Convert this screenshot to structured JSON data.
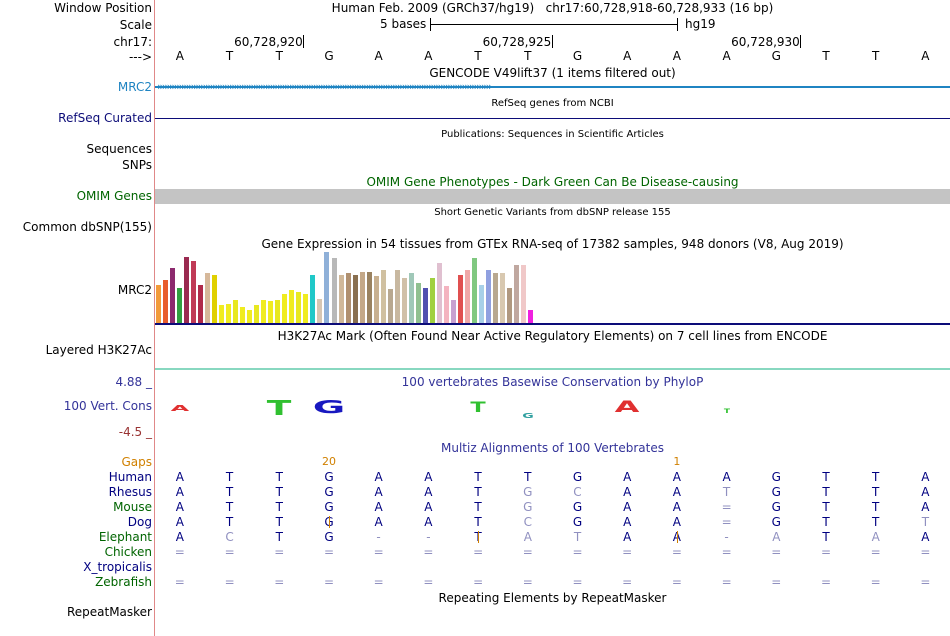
{
  "header": {
    "window_position_label": "Window Position",
    "window_position_text": "Human Feb. 2009 (GRCh37/hg19)   chr17:60,728,918-60,728,933 (16 bp)",
    "scale_label": "Scale",
    "scale_text": "5 bases",
    "scale_assembly": "hg19",
    "chrom_label": "chr17:",
    "coords": [
      "60,728,920",
      "60,728,925",
      "60,728,930"
    ],
    "arrow_label": "--->",
    "bases": [
      "A",
      "T",
      "T",
      "G",
      "A",
      "A",
      "T",
      "T",
      "G",
      "A",
      "A",
      "A",
      "G",
      "T",
      "T",
      "A"
    ]
  },
  "tracks": {
    "gencode": {
      "title": "GENCODE V49lift37 (1 items filtered out)",
      "label": "MRC2",
      "color": "#1f84c2"
    },
    "refseq": {
      "title": "RefSeq genes from NCBI",
      "label": "RefSeq Curated",
      "color": "#0c0c78"
    },
    "publications": {
      "title": "Publications: Sequences in Scientific Articles",
      "label1": "Sequences",
      "label2": "SNPs"
    },
    "omim": {
      "title": "OMIM Gene Phenotypes - Dark Green Can Be Disease-causing",
      "label": "OMIM Genes",
      "color": "#006400",
      "bar_color": "#c4c4c4"
    },
    "snp": {
      "title": "Short Genetic Variants from dbSNP release 155",
      "label": "Common dbSNP(155)"
    },
    "gtex": {
      "title": "Gene Expression in 54 tissues from GTEx RNA-seq of 17382 samples, 948 donors (V8, Aug 2019)",
      "label": "MRC2",
      "values": [
        0.54,
        0.6,
        0.78,
        0.49,
        0.93,
        0.88,
        0.54,
        0.71,
        0.68,
        0.26,
        0.27,
        0.32,
        0.22,
        0.18,
        0.26,
        0.33,
        0.31,
        0.32,
        0.41,
        0.46,
        0.44,
        0.41,
        0.68,
        0.34,
        1.0,
        0.92,
        0.67,
        0.71,
        0.67,
        0.72,
        0.72,
        0.66,
        0.75,
        0.48,
        0.74,
        0.63,
        0.71,
        0.57,
        0.49,
        0.63,
        0.85,
        0.52,
        0.32,
        0.67,
        0.74,
        0.91,
        0.53,
        0.75,
        0.7,
        0.7,
        0.49,
        0.81,
        0.81,
        0.19
      ],
      "colors": [
        "#f29a3a",
        "#e85d2c",
        "#8c2a6e",
        "#30a040",
        "#9a2a50",
        "#c03a56",
        "#b02a4a",
        "#d6b89a",
        "#e0d000",
        "#f0ec20",
        "#f0ec20",
        "#e8e820",
        "#f0ec20",
        "#f0ec20",
        "#e8e820",
        "#f0ec20",
        "#f0ec20",
        "#e8e820",
        "#f0ec20",
        "#f0ec20",
        "#e8e820",
        "#f0ec20",
        "#20c8c8",
        "#d7c6b2",
        "#8fb0d8",
        "#b8b8b8",
        "#d0b89a",
        "#b09070",
        "#8a7050",
        "#c4a888",
        "#9a8260",
        "#c8b090",
        "#d0c0a0",
        "#b8a890",
        "#c8b8a0",
        "#d0c0a8",
        "#a0c8b8",
        "#90c090",
        "#5050b0",
        "#a0d040",
        "#e0c0d0",
        "#f4b4c0",
        "#c8a0d0",
        "#e05050",
        "#f0a8a8",
        "#80c880",
        "#a8d0e8",
        "#90a0e0",
        "#b8a890",
        "#d8c8b0",
        "#b09880",
        "#c0a8a0",
        "#f0c8c8",
        "#f020e0"
      ]
    },
    "h3k27ac": {
      "title": "H3K27Ac Mark (Often Found Near Active Regulatory Elements) on 7 cell lines from ENCODE",
      "label": "Layered H3K27Ac"
    },
    "phylop": {
      "title": "100 vertebrates Basewise Conservation by PhyloP",
      "label": "100 Vert. Cons",
      "max": "4.88 _",
      "min": "-4.5 _",
      "color": "#333399"
    },
    "multiz": {
      "title": "Multiz Alignments of 100 Vertebrates",
      "gaps_label": "Gaps",
      "gap_marks": [
        {
          "col": 3.5,
          "text": "20"
        },
        {
          "col": 10.5,
          "text": "1"
        }
      ],
      "species": [
        {
          "name": "Human",
          "color": "#000080",
          "seq": [
            "A",
            "T",
            "T",
            "G",
            "A",
            "A",
            "T",
            "T",
            "G",
            "A",
            "A",
            "A",
            "G",
            "T",
            "T",
            "A"
          ],
          "pale": []
        },
        {
          "name": "Rhesus",
          "color": "#000080",
          "seq": [
            "A",
            "T",
            "T",
            "G",
            "A",
            "A",
            "T",
            "G",
            "C",
            "A",
            "A",
            "T",
            "G",
            "T",
            "T",
            "A"
          ],
          "pale": [
            7,
            8,
            11
          ]
        },
        {
          "name": "Mouse",
          "color": "#006400",
          "seq": [
            "A",
            "T",
            "T",
            "G",
            "A",
            "A",
            "T",
            "G",
            "G",
            "A",
            "A",
            "=",
            "G",
            "T",
            "T",
            "A"
          ],
          "pale": [
            7,
            11
          ]
        },
        {
          "name": "Dog",
          "color": "#000080",
          "seq": [
            "A",
            "T",
            "T",
            "G",
            "A",
            "A",
            "T",
            "C",
            "G",
            "A",
            "A",
            "=",
            "G",
            "T",
            "T",
            "T"
          ],
          "pale": [
            7,
            11,
            15
          ]
        },
        {
          "name": "Elephant",
          "color": "#006400",
          "seq": [
            "A",
            "C",
            "T",
            "G",
            "-",
            "-",
            "T",
            "A",
            "T",
            "A",
            "A",
            "-",
            "A",
            "T",
            "A",
            "A"
          ],
          "pale": [
            1,
            4,
            5,
            7,
            8,
            11,
            12,
            14
          ]
        },
        {
          "name": "Chicken",
          "color": "#006400",
          "seq": [
            "=",
            "=",
            "=",
            "=",
            "=",
            "=",
            "=",
            "=",
            "=",
            "=",
            "=",
            "=",
            "=",
            "=",
            "=",
            "="
          ],
          "pale": [
            0,
            1,
            2,
            3,
            4,
            5,
            6,
            7,
            8,
            9,
            10,
            11,
            12,
            13,
            14,
            15
          ]
        },
        {
          "name": "X_tropicalis",
          "color": "#000080",
          "seq": [
            "",
            "",
            "",
            "",
            "",
            "",
            "",
            "",
            "",
            "",
            "",
            "",
            "",
            "",
            "",
            ""
          ],
          "pale": []
        },
        {
          "name": "Zebrafish",
          "color": "#006400",
          "seq": [
            "=",
            "=",
            "=",
            "=",
            "=",
            "=",
            "=",
            "=",
            "=",
            "=",
            "=",
            "=",
            "=",
            "=",
            "=",
            "="
          ],
          "pale": [
            0,
            1,
            2,
            3,
            4,
            5,
            6,
            7,
            8,
            9,
            10,
            11,
            12,
            13,
            14,
            15
          ]
        }
      ],
      "indel_marks": [
        {
          "row": 3,
          "col": 3.5
        },
        {
          "row": 4,
          "col": 6.5
        },
        {
          "row": 4,
          "col": 10.5
        }
      ]
    },
    "repeatmasker": {
      "title": "Repeating Elements by RepeatMasker",
      "label": "RepeatMasker"
    }
  }
}
